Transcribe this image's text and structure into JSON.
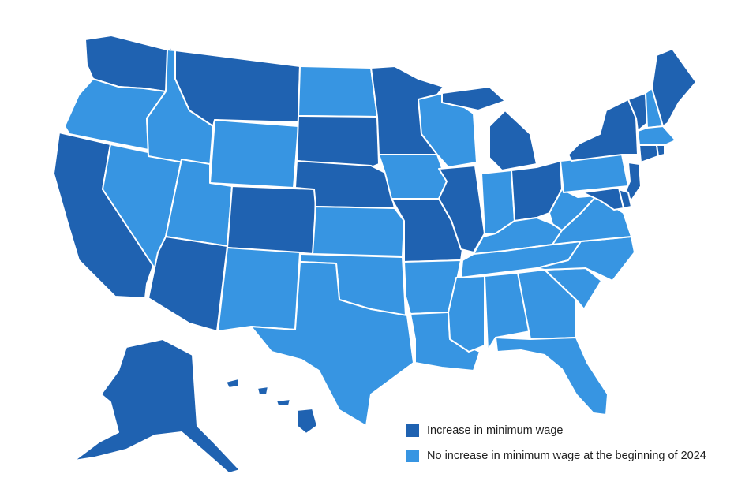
{
  "colors": {
    "increase": "#1f62b1",
    "no_increase": "#3795e2",
    "border": "#ffffff"
  },
  "legend": [
    {
      "key": "increase",
      "label": "Increase in minimum wage"
    },
    {
      "key": "no_increase",
      "label": "No increase in minimum wage at the beginning of 2024"
    }
  ],
  "states": [
    {
      "id": "WA",
      "status": "increase"
    },
    {
      "id": "OR",
      "status": "no_increase"
    },
    {
      "id": "CA",
      "status": "increase"
    },
    {
      "id": "NV",
      "status": "no_increase"
    },
    {
      "id": "ID",
      "status": "no_increase"
    },
    {
      "id": "MT",
      "status": "increase"
    },
    {
      "id": "WY",
      "status": "no_increase"
    },
    {
      "id": "UT",
      "status": "no_increase"
    },
    {
      "id": "AZ",
      "status": "increase"
    },
    {
      "id": "CO",
      "status": "increase"
    },
    {
      "id": "NM",
      "status": "no_increase"
    },
    {
      "id": "ND",
      "status": "no_increase"
    },
    {
      "id": "SD",
      "status": "increase"
    },
    {
      "id": "NE",
      "status": "increase"
    },
    {
      "id": "KS",
      "status": "no_increase"
    },
    {
      "id": "OK",
      "status": "no_increase"
    },
    {
      "id": "TX",
      "status": "no_increase"
    },
    {
      "id": "MN",
      "status": "increase"
    },
    {
      "id": "IA",
      "status": "no_increase"
    },
    {
      "id": "MO",
      "status": "increase"
    },
    {
      "id": "AR",
      "status": "no_increase"
    },
    {
      "id": "LA",
      "status": "no_increase"
    },
    {
      "id": "WI",
      "status": "no_increase"
    },
    {
      "id": "IL",
      "status": "increase"
    },
    {
      "id": "MI",
      "status": "increase"
    },
    {
      "id": "IN",
      "status": "no_increase"
    },
    {
      "id": "OH",
      "status": "increase"
    },
    {
      "id": "KY",
      "status": "no_increase"
    },
    {
      "id": "TN",
      "status": "no_increase"
    },
    {
      "id": "MS",
      "status": "no_increase"
    },
    {
      "id": "AL",
      "status": "no_increase"
    },
    {
      "id": "GA",
      "status": "no_increase"
    },
    {
      "id": "FL",
      "status": "no_increase"
    },
    {
      "id": "SC",
      "status": "no_increase"
    },
    {
      "id": "NC",
      "status": "no_increase"
    },
    {
      "id": "VA",
      "status": "no_increase"
    },
    {
      "id": "WV",
      "status": "no_increase"
    },
    {
      "id": "PA",
      "status": "no_increase"
    },
    {
      "id": "NY",
      "status": "increase"
    },
    {
      "id": "VT",
      "status": "increase"
    },
    {
      "id": "NH",
      "status": "no_increase"
    },
    {
      "id": "ME",
      "status": "increase"
    },
    {
      "id": "MA",
      "status": "no_increase"
    },
    {
      "id": "RI",
      "status": "increase"
    },
    {
      "id": "CT",
      "status": "increase"
    },
    {
      "id": "NJ",
      "status": "increase"
    },
    {
      "id": "DE",
      "status": "increase"
    },
    {
      "id": "MD",
      "status": "increase"
    },
    {
      "id": "AK",
      "status": "increase"
    },
    {
      "id": "HI",
      "status": "increase"
    }
  ]
}
